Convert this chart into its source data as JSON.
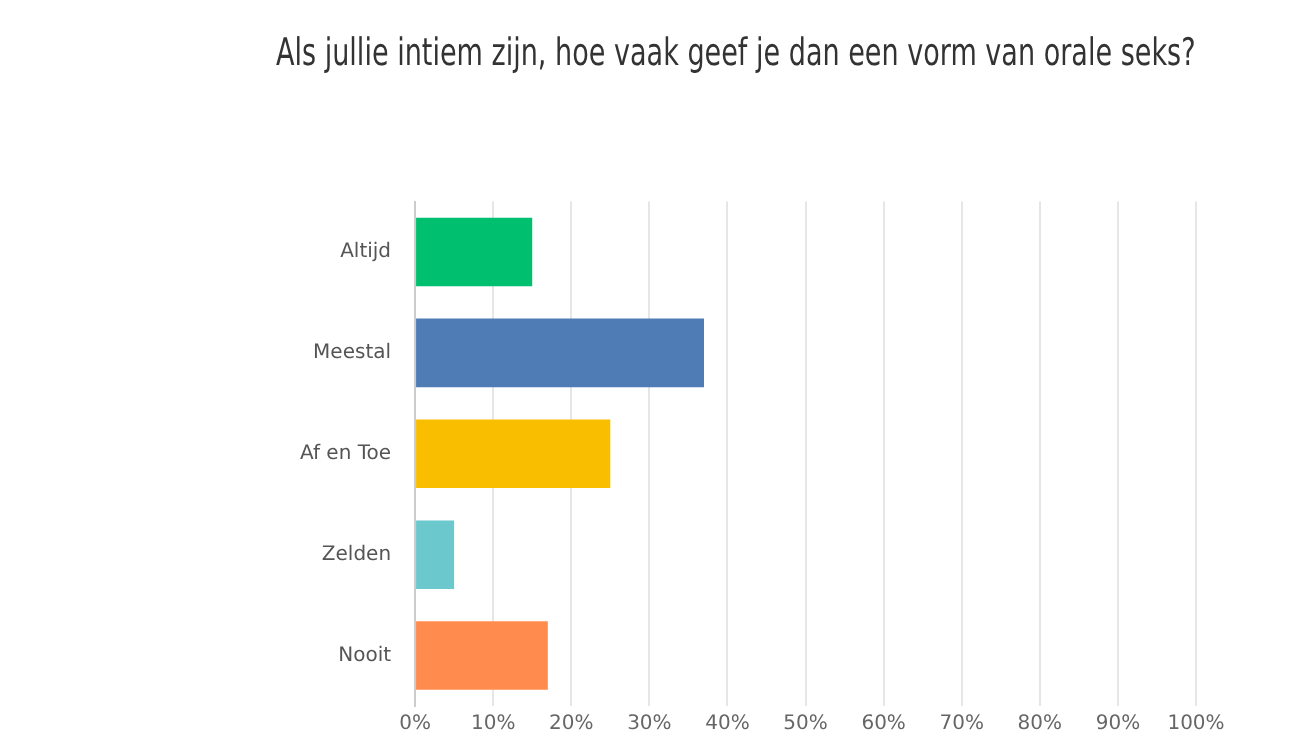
{
  "chart_data": {
    "type": "bar",
    "orientation": "horizontal",
    "title": "Als jullie intiem zijn, hoe vaak geef je dan een vorm van orale seks?",
    "categories": [
      "Altijd",
      "Meestal",
      "Af en Toe",
      "Zelden",
      "Nooit"
    ],
    "values": [
      15,
      37,
      25,
      5,
      17
    ],
    "colors": [
      "#00bf6f",
      "#507cb6",
      "#f9be00",
      "#6bc8cd",
      "#ff8b4f"
    ],
    "xlim": [
      0,
      100
    ],
    "xticks": [
      {
        "value": 0,
        "label": "0%"
      },
      {
        "value": 10,
        "label": "10%"
      },
      {
        "value": 20,
        "label": "20%"
      },
      {
        "value": 30,
        "label": "30%"
      },
      {
        "value": 40,
        "label": "40%"
      },
      {
        "value": 50,
        "label": "50%"
      },
      {
        "value": 60,
        "label": "60%"
      },
      {
        "value": 70,
        "label": "70%"
      },
      {
        "value": 80,
        "label": "80%"
      },
      {
        "value": 90,
        "label": "90%"
      },
      {
        "value": 100,
        "label": "100%"
      }
    ],
    "grid": "x",
    "legend": false
  }
}
